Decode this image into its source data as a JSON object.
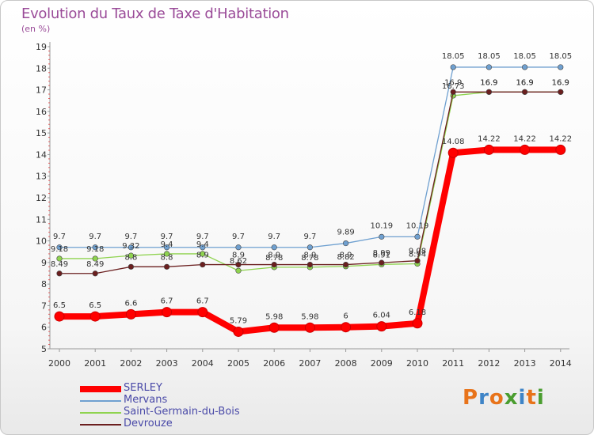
{
  "header": {
    "title": "Evolution du Taux de Taxe d'Habitation",
    "unit": "(en %)"
  },
  "brand": {
    "text": "Proxiti",
    "colors": [
      "#e8731a",
      "#3e84c7",
      "#e8731a",
      "#4a9d2f",
      "#3e84c7",
      "#e8731a",
      "#4a9d2f"
    ]
  },
  "chart_data": {
    "type": "line",
    "title": "Evolution du Taux de Taxe d'Habitation",
    "ylabel": "(en %)",
    "xlabel": "",
    "x": [
      2000,
      2001,
      2002,
      2003,
      2004,
      2005,
      2006,
      2007,
      2008,
      2009,
      2010,
      2011,
      2012,
      2013,
      2014
    ],
    "yticks": [
      5,
      6,
      7,
      8,
      9,
      10,
      11,
      12,
      13,
      14,
      15,
      16,
      17,
      18,
      19
    ],
    "ylim": [
      5,
      19
    ],
    "grid": false,
    "legend_position": "bottom-left",
    "series": [
      {
        "name": "SERLEY",
        "color": "#ff0000",
        "values": [
          6.5,
          6.5,
          6.6,
          6.7,
          6.7,
          5.79,
          5.98,
          5.98,
          6,
          6.04,
          6.18,
          14.08,
          14.22,
          14.22,
          14.22
        ],
        "labels": [
          "6.5",
          "6.5",
          "6.6",
          "6.7",
          "6.7",
          "5.79",
          "5.98",
          "5.98",
          "6",
          "6.04",
          "6.18",
          "14.08",
          "14.22",
          "14.22",
          "14.22"
        ]
      },
      {
        "name": "Mervans",
        "color": "#6fa0d0",
        "values": [
          9.7,
          9.7,
          9.7,
          9.7,
          9.7,
          9.7,
          9.7,
          9.7,
          9.89,
          10.19,
          10.19,
          18.05,
          18.05,
          18.05,
          18.05
        ],
        "labels": [
          "9.7",
          "9.7",
          "9.7",
          "9.7",
          "9.7",
          "9.7",
          "9.7",
          "9.7",
          "9.89",
          "10.19",
          "10.19",
          "18.05",
          "18.05",
          "18.05",
          "18.05"
        ]
      },
      {
        "name": "Saint-Germain-du-Bois",
        "color": "#8fd34f",
        "values": [
          9.18,
          9.18,
          9.32,
          9.4,
          9.4,
          8.62,
          8.78,
          8.78,
          8.82,
          8.91,
          8.94,
          16.73,
          16.9,
          16.9,
          16.9
        ],
        "labels": [
          "9.18",
          "9.18",
          "9.32",
          "9.4",
          "9.4",
          "8.62",
          "8.78",
          "8.78",
          "8.82",
          "8.91",
          "8.94",
          "16.73",
          "16.9",
          "16.9",
          "16.9"
        ]
      },
      {
        "name": "Devrouze",
        "color": "#6b1f1f",
        "values": [
          8.49,
          8.49,
          8.8,
          8.8,
          8.9,
          8.9,
          8.9,
          8.9,
          8.9,
          8.99,
          9.08,
          16.9,
          16.9,
          16.9,
          16.9
        ],
        "labels": [
          "8.49",
          "8.49",
          "8.8",
          "8.8",
          "8.9",
          "8.9",
          "8.9",
          "8.9",
          "8.9",
          "8.99",
          "9.08",
          "16.9",
          "16.9",
          "16.9",
          "16.9"
        ]
      }
    ]
  }
}
